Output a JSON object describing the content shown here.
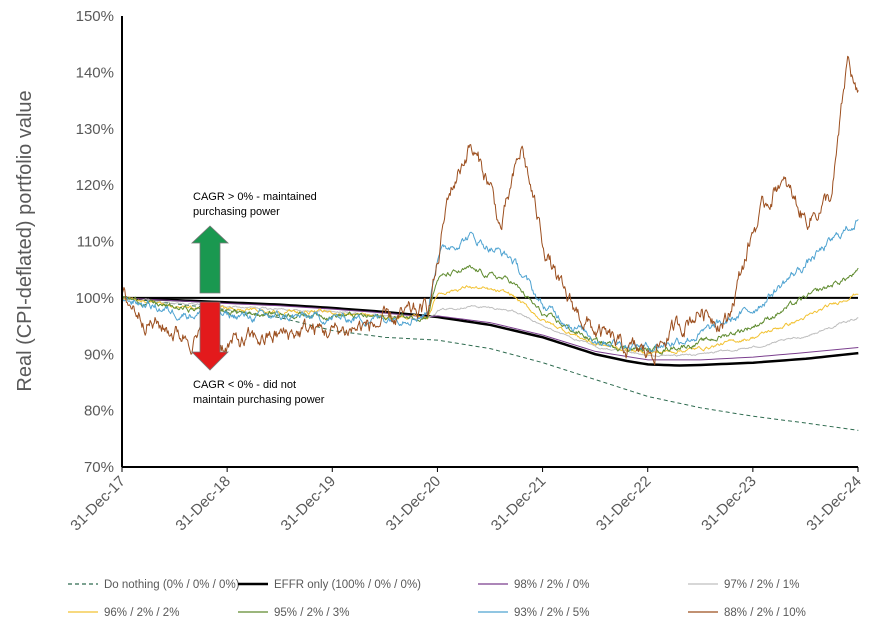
{
  "chart_data": {
    "type": "line",
    "ylabel": "Real (CPI-deflated) portfolio value",
    "xlabel": "",
    "ylim": [
      70,
      150
    ],
    "y_ticks": [
      70,
      80,
      90,
      100,
      110,
      120,
      130,
      140,
      150
    ],
    "y_tick_labels": [
      "70%",
      "80%",
      "90%",
      "100%",
      "110%",
      "120%",
      "130%",
      "140%",
      "150%"
    ],
    "x_ticks": [
      2017.997,
      2018.997,
      2019.997,
      2020.997,
      2021.997,
      2022.997,
      2023.997,
      2024.997
    ],
    "x_tick_labels": [
      "31-Dec-17",
      "31-Dec-18",
      "31-Dec-19",
      "31-Dec-20",
      "31-Dec-21",
      "31-Dec-22",
      "31-Dec-23",
      "31-Dec-24"
    ],
    "xlim": [
      2017.997,
      2024.997
    ],
    "reference_line": 100,
    "annotations": {
      "up": [
        "CAGR > 0% - maintained",
        "purchasing power"
      ],
      "down": [
        "CAGR < 0% - did not",
        "maintain purchasing power"
      ],
      "up_arrow_color": "#1a9850",
      "down_arrow_color": "#e31a1c"
    },
    "series": [
      {
        "name": "Do nothing (0% / 0% / 0%)",
        "color": "#2e6b4f",
        "dash": true,
        "width": 1,
        "x": [
          2018.0,
          2019.0,
          2019.5,
          2020.0,
          2020.5,
          2021.0,
          2021.5,
          2022.0,
          2022.5,
          2023.0,
          2023.5,
          2024.0,
          2024.5,
          2025.0
        ],
        "values": [
          100,
          97.9,
          96.5,
          94.2,
          93.0,
          92.5,
          91.0,
          88.5,
          85.5,
          82.5,
          80.5,
          79.0,
          77.8,
          76.5
        ]
      },
      {
        "name": "EFFR only (100% / 0% / 0%)",
        "color": "#000000",
        "dash": false,
        "width": 2.5,
        "x": [
          2018.0,
          2018.5,
          2019.0,
          2019.5,
          2020.0,
          2020.5,
          2021.0,
          2021.5,
          2022.0,
          2022.5,
          2022.8,
          2023.0,
          2023.3,
          2023.5,
          2024.0,
          2024.5,
          2025.0
        ],
        "values": [
          100,
          99.6,
          99.2,
          98.8,
          98.2,
          97.5,
          96.6,
          95.2,
          93.0,
          90.0,
          88.8,
          88.2,
          88.0,
          88.1,
          88.5,
          89.2,
          90.2
        ]
      },
      {
        "name": "98% / 2% / 0%",
        "color": "#7b3f8e",
        "dash": false,
        "width": 1,
        "x": [
          2018.0,
          2018.5,
          2019.0,
          2019.5,
          2020.0,
          2020.5,
          2020.9,
          2021.0,
          2021.5,
          2022.0,
          2022.5,
          2023.0,
          2023.5,
          2024.0,
          2024.5,
          2025.0
        ],
        "values": [
          100,
          99.5,
          99.0,
          98.6,
          98.0,
          97.3,
          96.6,
          96.8,
          95.6,
          93.4,
          90.5,
          89.0,
          89.0,
          89.5,
          90.3,
          91.2
        ]
      },
      {
        "name": "97% / 2% / 1%",
        "color": "#bfbfbf",
        "dash": false,
        "width": 1,
        "x": [
          2018.0,
          2018.5,
          2019.0,
          2019.5,
          2020.0,
          2020.5,
          2020.9,
          2021.0,
          2021.3,
          2021.7,
          2022.0,
          2022.5,
          2023.0,
          2023.5,
          2024.0,
          2024.5,
          2025.0
        ],
        "values": [
          100,
          99.0,
          98.4,
          98.0,
          97.6,
          96.8,
          96.4,
          97.8,
          98.6,
          97.8,
          95.0,
          91.3,
          89.6,
          90.0,
          91.2,
          93.2,
          96.5
        ]
      },
      {
        "name": "96% / 2% / 2%",
        "color": "#f2c233",
        "dash": false,
        "width": 1,
        "x": [
          2018.0,
          2018.5,
          2019.0,
          2019.5,
          2020.0,
          2020.5,
          2020.9,
          2021.0,
          2021.3,
          2021.7,
          2022.0,
          2022.5,
          2023.0,
          2023.5,
          2024.0,
          2024.5,
          2025.0
        ],
        "values": [
          100,
          98.6,
          98.0,
          97.6,
          97.4,
          96.6,
          96.5,
          100.8,
          102.0,
          100.6,
          96.0,
          91.8,
          90.2,
          91.0,
          93.0,
          96.5,
          101.0
        ]
      },
      {
        "name": "95% / 2% / 3%",
        "color": "#5f8b2f",
        "dash": false,
        "width": 1,
        "x": [
          2018.0,
          2018.5,
          2019.0,
          2019.5,
          2020.0,
          2020.5,
          2020.9,
          2021.0,
          2021.3,
          2021.7,
          2022.0,
          2022.5,
          2023.0,
          2023.5,
          2024.0,
          2024.5,
          2025.0
        ],
        "values": [
          100,
          98.2,
          97.5,
          97.2,
          97.0,
          96.5,
          96.8,
          103.5,
          105.0,
          103.0,
          97.0,
          92.2,
          90.6,
          92.0,
          95.0,
          100.0,
          104.5
        ]
      },
      {
        "name": "93% / 2% / 5%",
        "color": "#4fa3d1",
        "dash": false,
        "width": 1,
        "x": [
          2018.0,
          2018.5,
          2019.0,
          2019.5,
          2020.0,
          2020.5,
          2020.9,
          2021.0,
          2021.3,
          2021.7,
          2022.0,
          2022.5,
          2023.0,
          2023.5,
          2024.0,
          2024.5,
          2025.0
        ],
        "values": [
          100,
          97.5,
          96.8,
          96.6,
          96.4,
          96.4,
          97.2,
          108.0,
          111.0,
          107.0,
          98.5,
          92.8,
          91.2,
          93.5,
          98.0,
          106.0,
          114.0
        ]
      },
      {
        "name": "88% / 2% / 10%",
        "color": "#9c4f1f",
        "dash": false,
        "width": 1,
        "x": [
          2018.0,
          2018.3,
          2018.5,
          2018.8,
          2019.0,
          2019.5,
          2019.8,
          2020.0,
          2020.5,
          2020.9,
          2021.0,
          2021.1,
          2021.3,
          2021.5,
          2021.6,
          2021.8,
          2022.0,
          2022.2,
          2022.5,
          2022.75,
          2023.0,
          2023.3,
          2023.5,
          2023.75,
          2024.0,
          2024.25,
          2024.5,
          2024.75,
          2024.9,
          2025.0
        ],
        "values": [
          100,
          95.5,
          94.0,
          92.5,
          91.7,
          93.3,
          94.5,
          94.0,
          95.5,
          97.8,
          106.0,
          118.0,
          127.0,
          120.0,
          112.0,
          126.5,
          110.0,
          100.0,
          94.0,
          91.0,
          90.0,
          95.0,
          98.0,
          96.0,
          112.0,
          121.0,
          114.0,
          118.0,
          142.0,
          135.0
        ]
      }
    ]
  }
}
